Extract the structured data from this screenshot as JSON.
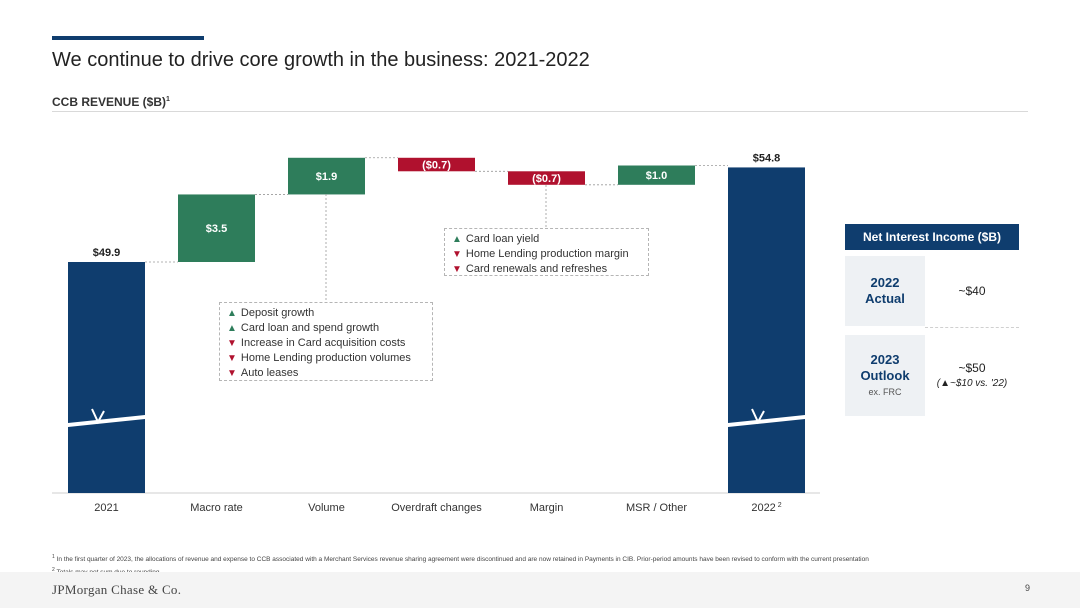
{
  "header": {
    "title": "We continue to drive core growth in the business: 2021-2022",
    "subtitle": "CCB REVENUE ($B)",
    "subtitle_sup": "1"
  },
  "colors": {
    "navy": "#0f3d6e",
    "green": "#2e7d5b",
    "red": "#b0112e"
  },
  "chart_data": {
    "type": "bar",
    "subtype": "waterfall",
    "title": "CCB REVENUE ($B)",
    "categories": [
      "2021",
      "Macro rate",
      "Volume",
      "Overdraft changes",
      "Margin",
      "MSR / Other",
      "2022"
    ],
    "category_sup": [
      "",
      "",
      "",
      "",
      "",
      "",
      "2"
    ],
    "values": [
      49.9,
      3.5,
      1.9,
      -0.7,
      -0.7,
      1.0,
      54.8
    ],
    "bar_kind": [
      "total",
      "increase",
      "increase",
      "decrease",
      "decrease",
      "increase",
      "total"
    ],
    "labels": [
      "$49.9",
      "$3.5",
      "$1.9",
      "($0.7)",
      "($0.7)",
      "$1.0",
      "$54.8"
    ],
    "axis_break": true,
    "y_axis_shown": false
  },
  "drivers": {
    "volume": [
      {
        "dir": "up",
        "text": "Deposit growth"
      },
      {
        "dir": "up",
        "text": "Card loan and spend growth"
      },
      {
        "dir": "down",
        "text": "Increase in Card acquisition costs"
      },
      {
        "dir": "down",
        "text": "Home Lending production volumes"
      },
      {
        "dir": "down",
        "text": "Auto leases"
      }
    ],
    "margin": [
      {
        "dir": "up",
        "text": "Card loan yield"
      },
      {
        "dir": "down",
        "text": "Home Lending production margin"
      },
      {
        "dir": "down",
        "text": "Card renewals and refreshes"
      }
    ]
  },
  "nii": {
    "header": "Net Interest Income ($B)",
    "row1_label": "2022 Actual",
    "row1_value": "~$40",
    "row2_label": "2023 Outlook",
    "row2_sublabel": "ex. FRC",
    "row2_value": "~$50",
    "row2_note": "(▲~$10 vs. '22)"
  },
  "footnotes": {
    "note1_mark": "1",
    "note1": "In the first quarter of 2023, the allocations of revenue and expense to CCB associated with a Merchant Services revenue sharing agreement were discontinued and are now retained in Payments in CIB. Prior-period amounts have been revised to conform with the current presentation",
    "note2_mark": "2",
    "note2": "Totals may not sum due to rounding"
  },
  "footer": {
    "logo": "JPMorgan Chase & Co.",
    "page": "9"
  }
}
